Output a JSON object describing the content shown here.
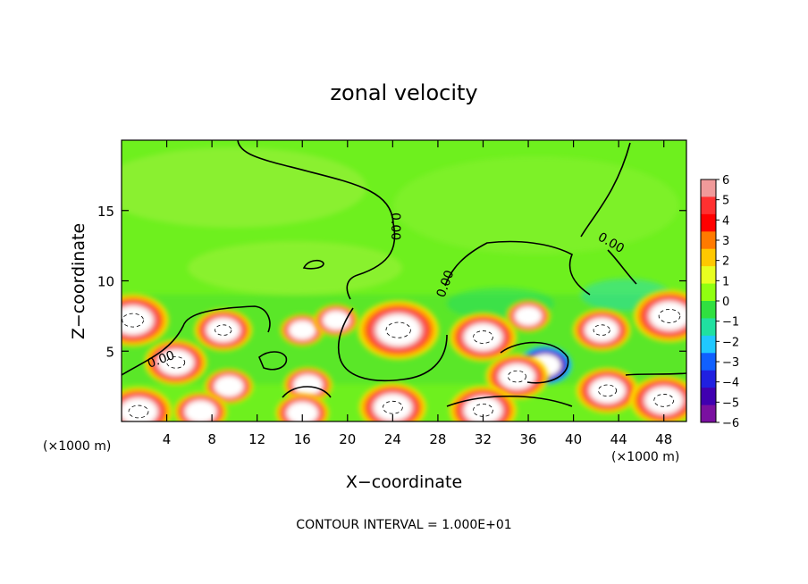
{
  "chart_data": {
    "type": "heatmap",
    "title": "zonal velocity",
    "xlabel": "X−coordinate",
    "ylabel": "Z−coordinate",
    "x_unit_left": "(×1000 m)",
    "x_unit_right": "(×1000 m)",
    "xlim": [
      0,
      50
    ],
    "ylim": [
      0,
      20
    ],
    "x_ticks": [
      4,
      8,
      12,
      16,
      20,
      24,
      28,
      32,
      36,
      40,
      44,
      48
    ],
    "y_ticks": [
      5,
      10,
      15
    ],
    "colorbar": {
      "ticks": [
        "6",
        "5",
        "4",
        "3",
        "2",
        "1",
        "0",
        "−1",
        "−2",
        "−3",
        "−4",
        "−5",
        "−6"
      ],
      "colors": [
        "#f09a9a",
        "#ff3030",
        "#ff0000",
        "#ff7a00",
        "#ffc800",
        "#e8ff20",
        "#90ff10",
        "#30e040",
        "#20e0a0",
        "#20c8ff",
        "#1060ff",
        "#2020e0",
        "#4000b0",
        "#7a10a0"
      ]
    },
    "contour_label": "0.00",
    "contour_interval_text": "CONTOUR INTERVAL = 1.000E+01",
    "features": [
      {
        "x": 1.0,
        "z": 7.2,
        "value": 10
      },
      {
        "x": 4.8,
        "z": 4.2,
        "value": 8
      },
      {
        "x": 9.0,
        "z": 6.5,
        "value": 7
      },
      {
        "x": 9.5,
        "z": 2.5,
        "value": 5
      },
      {
        "x": 16.5,
        "z": 2.6,
        "value": 5
      },
      {
        "x": 16.0,
        "z": 6.5,
        "value": 4
      },
      {
        "x": 19.0,
        "z": 7.2,
        "value": 4
      },
      {
        "x": 24.5,
        "z": 6.5,
        "value": 12
      },
      {
        "x": 32.0,
        "z": 6.0,
        "value": 9
      },
      {
        "x": 36.0,
        "z": 7.5,
        "value": 4
      },
      {
        "x": 37.5,
        "z": 4.0,
        "value": -6
      },
      {
        "x": 35.0,
        "z": 3.2,
        "value": 8
      },
      {
        "x": 42.5,
        "z": 6.5,
        "value": 7
      },
      {
        "x": 43.0,
        "z": 2.2,
        "value": 8
      },
      {
        "x": 48.5,
        "z": 7.5,
        "value": 10
      },
      {
        "x": 1.5,
        "z": 0.7,
        "value": 9
      },
      {
        "x": 7.0,
        "z": 0.7,
        "value": 6
      },
      {
        "x": 16.0,
        "z": 0.6,
        "value": 6
      },
      {
        "x": 24.0,
        "z": 1.0,
        "value": 9
      },
      {
        "x": 32.0,
        "z": 0.8,
        "value": 9
      },
      {
        "x": 48.0,
        "z": 1.5,
        "value": 9
      }
    ]
  }
}
